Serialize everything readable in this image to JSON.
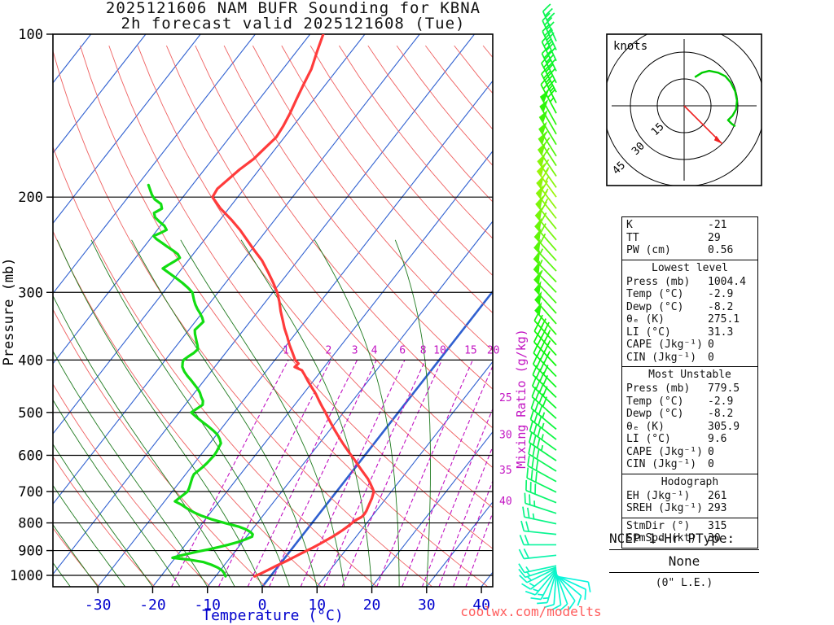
{
  "title": {
    "line1": "2025121606 NAM BUFR Sounding for KBNA",
    "line2": "2h forecast valid 2025121608 (Tue)"
  },
  "watermark": "coolwx.com/modelts",
  "axes": {
    "pressure_label": "Pressure (mb)",
    "temperature_label": "Temperature (°C)",
    "mixing_ratio_label": "Mixing Ratio (g/kg)",
    "pressure_ticks": [
      100,
      200,
      300,
      400,
      500,
      600,
      700,
      800,
      900,
      1000
    ],
    "temperature_ticks": [
      -30,
      -20,
      -10,
      0,
      10,
      20,
      30,
      40
    ]
  },
  "mixing_ratio_values": [
    1,
    2,
    3,
    4,
    6,
    8,
    10,
    15,
    20,
    25,
    30,
    35,
    40
  ],
  "hodograph": {
    "unit_label": "knots",
    "ring_labels": [
      "15",
      "30",
      "45"
    ],
    "rings_kt": [
      15,
      30,
      45
    ],
    "trace_uv_kt": [
      [
        6,
        -16
      ],
      [
        10,
        -18.5
      ],
      [
        14,
        -19.5
      ],
      [
        19,
        -18.5
      ],
      [
        23,
        -16.5
      ],
      [
        26,
        -13
      ],
      [
        28.5,
        -8
      ],
      [
        29.5,
        -3
      ],
      [
        29,
        2
      ],
      [
        27,
        5.5
      ],
      [
        24.5,
        8
      ],
      [
        26.5,
        10
      ],
      [
        28.5,
        11.5
      ]
    ],
    "storm_motion": {
      "dir_deg": 315,
      "spd_kt": 30
    }
  },
  "stats": {
    "sections": [
      {
        "header": null,
        "rows": [
          [
            "K",
            "-21"
          ],
          [
            "TT",
            "29"
          ],
          [
            "PW (cm)",
            "0.56"
          ]
        ]
      },
      {
        "header": "Lowest level",
        "rows": [
          [
            "Press (mb)",
            "1004.4"
          ],
          [
            "Temp (°C)",
            "-2.9"
          ],
          [
            "Dewp (°C)",
            "-8.2"
          ],
          [
            "θₑ (K)",
            "275.1"
          ],
          [
            "LI (°C)",
            "31.3"
          ],
          [
            "CAPE (Jkg⁻¹)",
            "0"
          ],
          [
            "CIN (Jkg⁻¹)",
            "0"
          ]
        ]
      },
      {
        "header": "Most Unstable",
        "rows": [
          [
            "Press (mb)",
            "779.5"
          ],
          [
            "Temp (°C)",
            "-2.9"
          ],
          [
            "Dewp (°C)",
            "-8.2"
          ],
          [
            "θₑ (K)",
            "305.9"
          ],
          [
            "LI (°C)",
            "9.6"
          ],
          [
            "CAPE (Jkg⁻¹)",
            "0"
          ],
          [
            "CIN (Jkg⁻¹)",
            "0"
          ]
        ]
      },
      {
        "header": "Hodograph",
        "rows": [
          [
            "EH (Jkg⁻¹)",
            "261"
          ],
          [
            "SREH (Jkg⁻¹)",
            "293"
          ]
        ]
      },
      {
        "header": null,
        "rows": [
          [
            "StmDir (°)",
            "315"
          ],
          [
            "StmSpd (kt)",
            "30"
          ]
        ]
      }
    ]
  },
  "ptype": {
    "title": "NCEP 1-Hr PType:",
    "value": "None",
    "subtitle": "(0\" L.E.)"
  },
  "colors": {
    "temperature": "#ff3b3b",
    "dewpoint": "#12dd12",
    "isotherm": "#3060d0",
    "dry_adiabat": "#ef6161",
    "moist_adiabat": "#1f7a1f",
    "mixing_ratio": "#c213c2",
    "axis_blue": "#0000cd",
    "watermark": "#ff5c5c",
    "storm_arrow": "#ee2222",
    "hodo_trace": "#00cc00",
    "barb_slow": "#00dcdc",
    "barb_fast": "#8fd400"
  },
  "chart_data": {
    "type": "line",
    "chart_kind": "skew-t log-p sounding",
    "title": "2025121606 NAM BUFR Sounding for KBNA",
    "subtitle": "2h forecast valid 2025121608 (Tue)",
    "xlabel": "Temperature (°C)",
    "ylabel": "Pressure (mb)",
    "xlim": [
      -40,
      45
    ],
    "ylim": [
      1050,
      100
    ],
    "y_scale": "log",
    "x_ticks": [
      -30,
      -20,
      -10,
      0,
      10,
      20,
      30,
      40
    ],
    "y_ticks": [
      100,
      200,
      300,
      400,
      500,
      600,
      700,
      800,
      900,
      1000
    ],
    "mixing_ratio_lines_gkg": [
      1,
      2,
      3,
      4,
      6,
      8,
      10,
      15,
      20,
      25,
      30,
      35,
      40
    ],
    "wind_units": "knots",
    "temperature_profile": [
      [
        1004,
        -2.9
      ],
      [
        990,
        -2.0
      ],
      [
        975,
        -1.2
      ],
      [
        960,
        -0.4
      ],
      [
        950,
        0.2
      ],
      [
        938,
        0.9
      ],
      [
        925,
        1.6
      ],
      [
        912,
        2.3
      ],
      [
        900,
        3.0
      ],
      [
        888,
        3.7
      ],
      [
        875,
        4.4
      ],
      [
        862,
        5.0
      ],
      [
        850,
        5.6
      ],
      [
        838,
        6.1
      ],
      [
        825,
        6.6
      ],
      [
        812,
        7.0
      ],
      [
        800,
        7.3
      ],
      [
        790,
        7.6
      ],
      [
        780,
        8.2
      ],
      [
        770,
        8.3
      ],
      [
        760,
        8.2
      ],
      [
        750,
        8.0
      ],
      [
        740,
        7.8
      ],
      [
        730,
        7.6
      ],
      [
        720,
        7.4
      ],
      [
        710,
        7.1
      ],
      [
        700,
        6.8
      ],
      [
        688,
        5.9
      ],
      [
        675,
        4.9
      ],
      [
        662,
        3.8
      ],
      [
        650,
        2.6
      ],
      [
        638,
        1.4
      ],
      [
        625,
        0.1
      ],
      [
        612,
        -1.2
      ],
      [
        600,
        -2.5
      ],
      [
        588,
        -3.8
      ],
      [
        575,
        -5.2
      ],
      [
        562,
        -6.6
      ],
      [
        550,
        -7.9
      ],
      [
        538,
        -9.2
      ],
      [
        525,
        -10.6
      ],
      [
        512,
        -12.0
      ],
      [
        500,
        -13.3
      ],
      [
        488,
        -14.7
      ],
      [
        475,
        -16.2
      ],
      [
        462,
        -17.7
      ],
      [
        450,
        -19.3
      ],
      [
        438,
        -20.9
      ],
      [
        425,
        -22.6
      ],
      [
        418,
        -23.6
      ],
      [
        412,
        -25.4
      ],
      [
        406,
        -25.2
      ],
      [
        400,
        -26.3
      ],
      [
        388,
        -27.8
      ],
      [
        375,
        -29.5
      ],
      [
        362,
        -31.1
      ],
      [
        350,
        -32.7
      ],
      [
        338,
        -34.2
      ],
      [
        325,
        -35.9
      ],
      [
        312,
        -37.5
      ],
      [
        300,
        -39.2
      ],
      [
        288,
        -41.3
      ],
      [
        275,
        -43.8
      ],
      [
        262,
        -46.5
      ],
      [
        250,
        -49.6
      ],
      [
        240,
        -52.2
      ],
      [
        230,
        -54.9
      ],
      [
        220,
        -58.0
      ],
      [
        210,
        -61.5
      ],
      [
        200,
        -64.6
      ],
      [
        193,
        -64.9
      ],
      [
        186,
        -64.3
      ],
      [
        178,
        -63.6
      ],
      [
        170,
        -62.5
      ],
      [
        162,
        -62.0
      ],
      [
        155,
        -61.5
      ],
      [
        148,
        -61.8
      ],
      [
        140,
        -62.4
      ],
      [
        132,
        -63.2
      ],
      [
        124,
        -64.0
      ],
      [
        116,
        -64.8
      ],
      [
        108,
        -66.2
      ],
      [
        100,
        -67.6
      ]
    ],
    "dewpoint_profile": [
      [
        1004,
        -8.2
      ],
      [
        992,
        -8.8
      ],
      [
        980,
        -9.6
      ],
      [
        968,
        -10.8
      ],
      [
        956,
        -12.4
      ],
      [
        945,
        -14.2
      ],
      [
        936,
        -17.0
      ],
      [
        928,
        -20.5
      ],
      [
        920,
        -19.5
      ],
      [
        912,
        -18.2
      ],
      [
        904,
        -16.9
      ],
      [
        896,
        -15.2
      ],
      [
        888,
        -13.8
      ],
      [
        878,
        -12.2
      ],
      [
        868,
        -10.8
      ],
      [
        858,
        -9.8
      ],
      [
        848,
        -9.0
      ],
      [
        840,
        -9.2
      ],
      [
        832,
        -9.9
      ],
      [
        822,
        -11.2
      ],
      [
        812,
        -13.0
      ],
      [
        800,
        -16.0
      ],
      [
        788,
        -18.8
      ],
      [
        776,
        -21.2
      ],
      [
        764,
        -23.2
      ],
      [
        752,
        -24.9
      ],
      [
        740,
        -26.5
      ],
      [
        730,
        -28.1
      ],
      [
        720,
        -27.8
      ],
      [
        710,
        -27.5
      ],
      [
        700,
        -27.2
      ],
      [
        690,
        -27.4
      ],
      [
        680,
        -27.7
      ],
      [
        670,
        -28.0
      ],
      [
        660,
        -28.3
      ],
      [
        650,
        -28.5
      ],
      [
        640,
        -28.2
      ],
      [
        630,
        -27.9
      ],
      [
        620,
        -27.7
      ],
      [
        610,
        -27.6
      ],
      [
        600,
        -27.5
      ],
      [
        590,
        -27.6
      ],
      [
        580,
        -27.8
      ],
      [
        570,
        -28.0
      ],
      [
        560,
        -28.8
      ],
      [
        550,
        -29.8
      ],
      [
        540,
        -31.2
      ],
      [
        530,
        -32.8
      ],
      [
        520,
        -34.5
      ],
      [
        510,
        -36.2
      ],
      [
        500,
        -37.8
      ],
      [
        492,
        -37.3
      ],
      [
        484,
        -36.8
      ],
      [
        476,
        -37.3
      ],
      [
        468,
        -38.2
      ],
      [
        460,
        -39.0
      ],
      [
        452,
        -40.0
      ],
      [
        444,
        -41.2
      ],
      [
        436,
        -42.4
      ],
      [
        428,
        -43.7
      ],
      [
        420,
        -44.9
      ],
      [
        412,
        -45.9
      ],
      [
        404,
        -46.5
      ],
      [
        400,
        -46.7
      ],
      [
        394,
        -46.3
      ],
      [
        388,
        -45.8
      ],
      [
        382,
        -45.6
      ],
      [
        376,
        -46.2
      ],
      [
        370,
        -46.9
      ],
      [
        364,
        -47.6
      ],
      [
        358,
        -48.3
      ],
      [
        352,
        -48.9
      ],
      [
        346,
        -48.7
      ],
      [
        340,
        -48.5
      ],
      [
        334,
        -49.3
      ],
      [
        328,
        -50.3
      ],
      [
        322,
        -51.4
      ],
      [
        316,
        -52.4
      ],
      [
        310,
        -53.3
      ],
      [
        305,
        -54.0
      ],
      [
        300,
        -54.7
      ],
      [
        294,
        -56.2
      ],
      [
        288,
        -57.9
      ],
      [
        282,
        -59.8
      ],
      [
        276,
        -61.8
      ],
      [
        271,
        -63.5
      ],
      [
        267,
        -63.0
      ],
      [
        263,
        -62.4
      ],
      [
        259,
        -61.9
      ],
      [
        255,
        -62.8
      ],
      [
        251,
        -64.2
      ],
      [
        247,
        -65.8
      ],
      [
        243,
        -67.3
      ],
      [
        239,
        -68.9
      ],
      [
        236,
        -69.8
      ],
      [
        233,
        -69.0
      ],
      [
        230,
        -68.3
      ],
      [
        226,
        -69.3
      ],
      [
        222,
        -70.8
      ],
      [
        218,
        -72.2
      ],
      [
        214,
        -73.0
      ],
      [
        210,
        -72.2
      ],
      [
        206,
        -73.0
      ],
      [
        202,
        -74.8
      ],
      [
        198,
        -76.0
      ],
      [
        194,
        -77.0
      ],
      [
        190,
        -78.0
      ]
    ],
    "wind_profile": [
      [
        1004,
        100,
        10
      ],
      [
        1001,
        115,
        10
      ],
      [
        998,
        130,
        11
      ],
      [
        995,
        145,
        11
      ],
      [
        992,
        160,
        12
      ],
      [
        989,
        172,
        12
      ],
      [
        986,
        184,
        12
      ],
      [
        983,
        196,
        13
      ],
      [
        980,
        208,
        13
      ],
      [
        977,
        220,
        13
      ],
      [
        974,
        232,
        14
      ],
      [
        970,
        244,
        14
      ],
      [
        966,
        252,
        15
      ],
      [
        960,
        258,
        16
      ],
      [
        918,
        264,
        18
      ],
      [
        878,
        270,
        20
      ],
      [
        840,
        276,
        22
      ],
      [
        803,
        282,
        24
      ],
      [
        768,
        288,
        26
      ],
      [
        734,
        292,
        28
      ],
      [
        702,
        296,
        30
      ],
      [
        671,
        299,
        31
      ],
      [
        642,
        302,
        32
      ],
      [
        614,
        304,
        33
      ],
      [
        587,
        306,
        34
      ],
      [
        561,
        308,
        35
      ],
      [
        537,
        310,
        36
      ],
      [
        513,
        312,
        38
      ],
      [
        491,
        313,
        39
      ],
      [
        469,
        314,
        40
      ],
      [
        449,
        315,
        41
      ],
      [
        429,
        316,
        42
      ],
      [
        410,
        317,
        44
      ],
      [
        392,
        318,
        45
      ],
      [
        375,
        318,
        46
      ],
      [
        359,
        319,
        48
      ],
      [
        343,
        319,
        49
      ],
      [
        328,
        318,
        50
      ],
      [
        314,
        317,
        52
      ],
      [
        300,
        316,
        53
      ],
      [
        287,
        316,
        55
      ],
      [
        274,
        317,
        56
      ],
      [
        262,
        318,
        58
      ],
      [
        251,
        319,
        59
      ],
      [
        240,
        320,
        61
      ],
      [
        229,
        321,
        62
      ],
      [
        219,
        322,
        64
      ],
      [
        210,
        323,
        65
      ],
      [
        200,
        324,
        67
      ],
      [
        192,
        325,
        64
      ],
      [
        183,
        326,
        61
      ],
      [
        175,
        327,
        58
      ],
      [
        168,
        328,
        55
      ],
      [
        160,
        329,
        52
      ],
      [
        153,
        330,
        50
      ],
      [
        147,
        331,
        48
      ],
      [
        140,
        332,
        46
      ],
      [
        134,
        333,
        44
      ],
      [
        128,
        333,
        42
      ],
      [
        123,
        334,
        40
      ],
      [
        117,
        334,
        38
      ],
      [
        112,
        335,
        36
      ],
      [
        107,
        335,
        34
      ],
      [
        103,
        336,
        32
      ]
    ],
    "hodograph_trace_uv_kt": [
      [
        6,
        -16
      ],
      [
        10,
        -18.5
      ],
      [
        14,
        -19.5
      ],
      [
        19,
        -18.5
      ],
      [
        23,
        -16.5
      ],
      [
        26,
        -13
      ],
      [
        28.5,
        -8
      ],
      [
        29.5,
        -3
      ],
      [
        29,
        2
      ],
      [
        27,
        5.5
      ],
      [
        24.5,
        8
      ],
      [
        26.5,
        10
      ],
      [
        28.5,
        11.5
      ]
    ],
    "storm_motion": {
      "dir_deg": 315,
      "spd_kt": 30
    }
  }
}
